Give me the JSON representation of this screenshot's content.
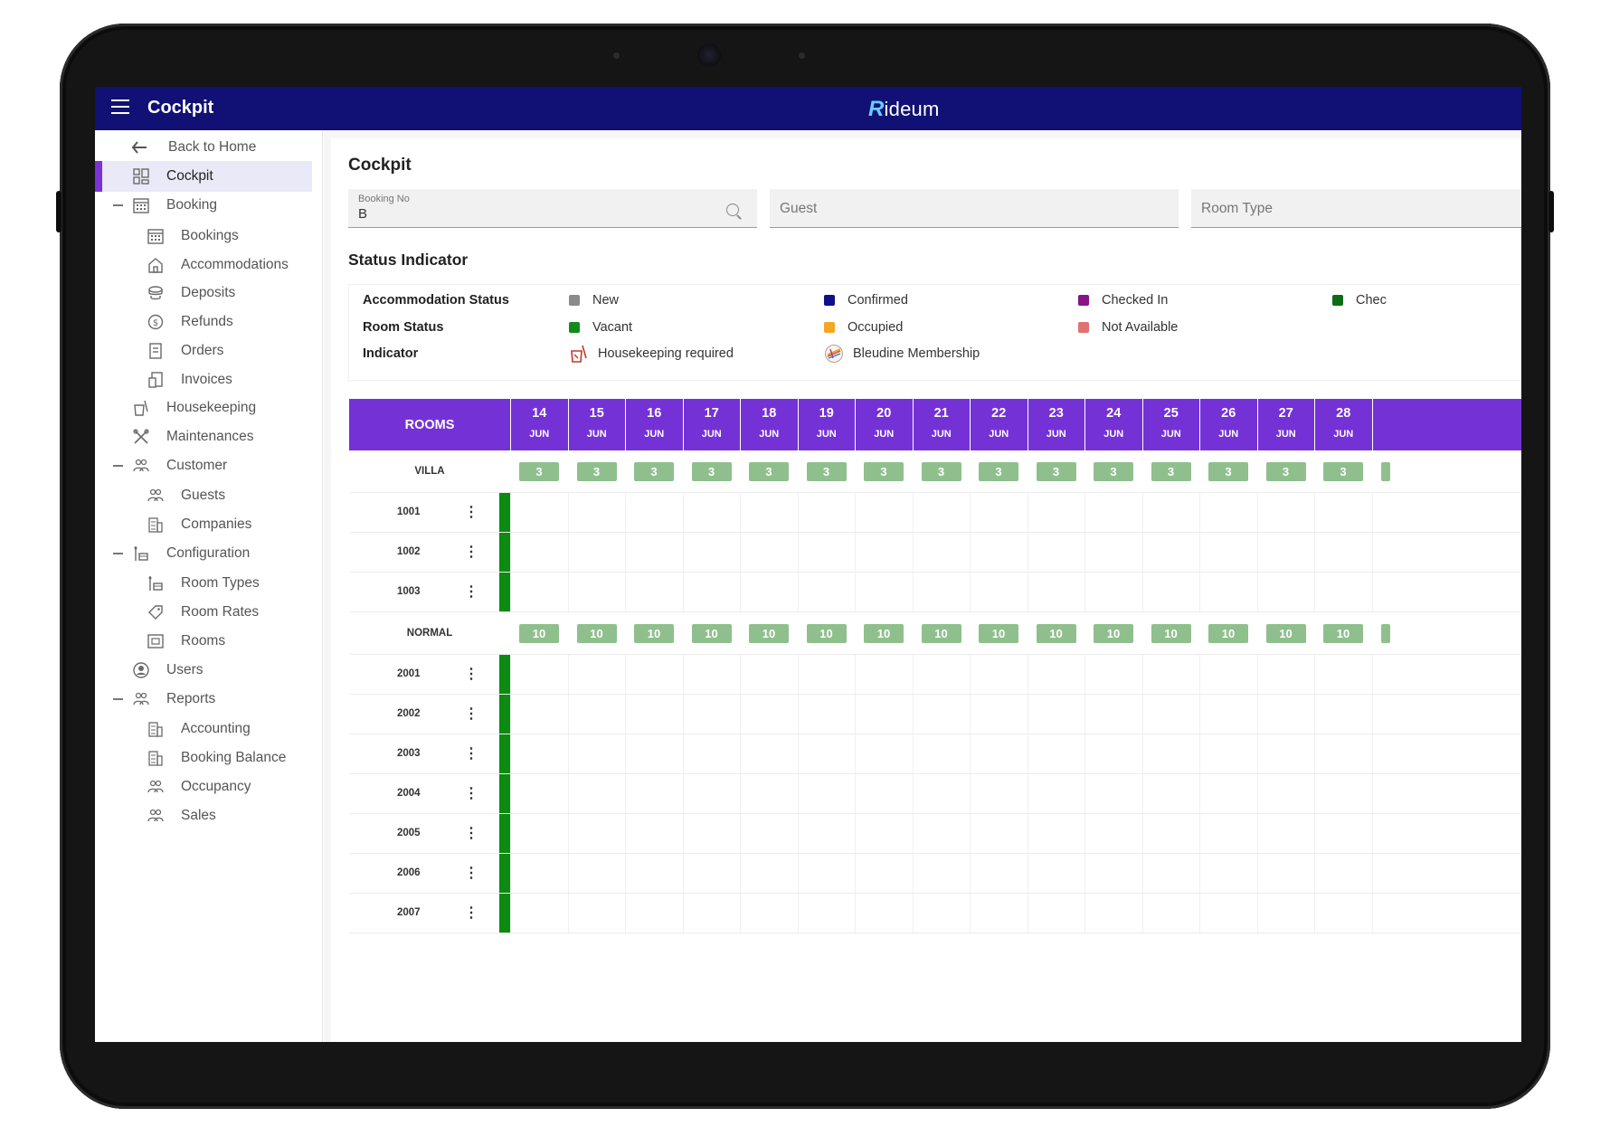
{
  "app": {
    "title": "Cockpit",
    "logo": "ideum",
    "logo_mark": "R"
  },
  "sidebar": {
    "back": "Back to Home",
    "items": [
      {
        "label": "Cockpit",
        "icon": "dashboard-icon"
      },
      {
        "label": "Booking",
        "icon": "calendar-icon"
      },
      {
        "label": "Bookings",
        "icon": "calendar-icon"
      },
      {
        "label": "Accommodations",
        "icon": "hotel-icon"
      },
      {
        "label": "Deposits",
        "icon": "coins-icon"
      },
      {
        "label": "Refunds",
        "icon": "dollar-icon"
      },
      {
        "label": "Orders",
        "icon": "order-icon"
      },
      {
        "label": "Invoices",
        "icon": "invoice-icon"
      },
      {
        "label": "Housekeeping",
        "icon": "housekeeping-icon"
      },
      {
        "label": "Maintenances",
        "icon": "tools-icon"
      },
      {
        "label": "Customer",
        "icon": "group-icon"
      },
      {
        "label": "Guests",
        "icon": "group-icon"
      },
      {
        "label": "Companies",
        "icon": "building-icon"
      },
      {
        "label": "Configuration",
        "icon": "config-icon"
      },
      {
        "label": "Room Types",
        "icon": "config-icon"
      },
      {
        "label": "Room Rates",
        "icon": "tag-icon"
      },
      {
        "label": "Rooms",
        "icon": "room-icon"
      },
      {
        "label": "Users",
        "icon": "user-icon"
      },
      {
        "label": "Reports",
        "icon": "group-icon"
      },
      {
        "label": "Accounting",
        "icon": "building-icon"
      },
      {
        "label": "Booking Balance",
        "icon": "building-icon"
      },
      {
        "label": "Occupancy",
        "icon": "group-icon"
      },
      {
        "label": "Sales",
        "icon": "group-icon"
      }
    ]
  },
  "main": {
    "title": "Cockpit",
    "filters": {
      "booking_no_label": "Booking No",
      "booking_no_value": "B",
      "guest_placeholder": "Guest",
      "room_type_placeholder": "Room Type"
    },
    "status_indicator": {
      "title": "Status Indicator",
      "rows": {
        "accommodation": "Accommodation Status",
        "room": "Room Status",
        "indicator": "Indicator"
      },
      "accommodation": [
        {
          "label": "New",
          "color": "#8a8a8a"
        },
        {
          "label": "Confirmed",
          "color": "#10108a"
        },
        {
          "label": "Checked In",
          "color": "#8a138a"
        },
        {
          "label": "Chec",
          "color": "#0b6e16"
        }
      ],
      "room": [
        {
          "label": "Vacant",
          "color": "#118c1b"
        },
        {
          "label": "Occupied",
          "color": "#f5a623"
        },
        {
          "label": "Not Available",
          "color": "#e07172"
        }
      ],
      "indicators": [
        {
          "label": "Housekeeping required",
          "icon": "housekeeping-icon"
        },
        {
          "label": "Bleudine Membership",
          "icon": "membership-icon"
        }
      ]
    },
    "grid": {
      "rooms_header": "ROOMS",
      "month": "JUN",
      "days": [
        "14",
        "15",
        "16",
        "17",
        "18",
        "19",
        "20",
        "21",
        "22",
        "23",
        "24",
        "25",
        "26",
        "27",
        "28"
      ],
      "groups": [
        {
          "name": "VILLA",
          "count": "3",
          "rooms": [
            "1001",
            "1002",
            "1003"
          ]
        },
        {
          "name": "NORMAL",
          "count": "10",
          "rooms": [
            "2001",
            "2002",
            "2003",
            "2004",
            "2005",
            "2006",
            "2007"
          ]
        }
      ]
    }
  }
}
